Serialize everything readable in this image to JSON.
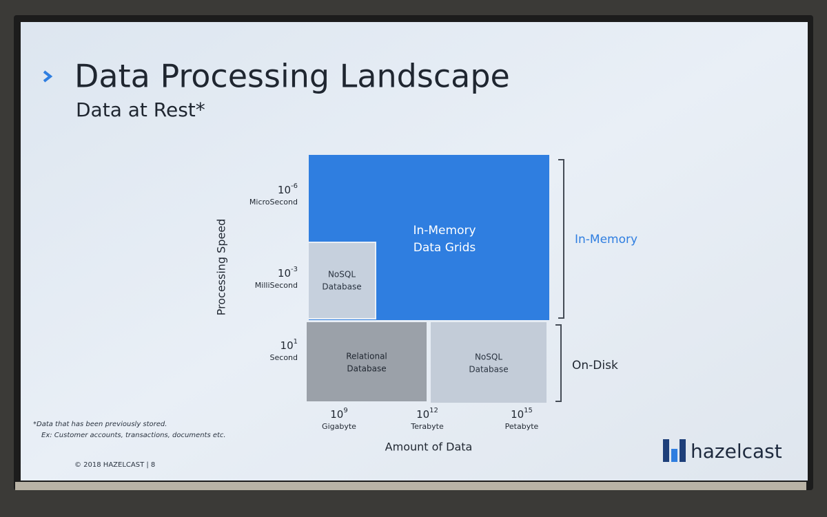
{
  "header": {
    "title": "Data Processing Landscape",
    "subtitle": "Data at Rest*"
  },
  "y_axis": {
    "label": "Processing Speed",
    "ticks": [
      {
        "base": "10",
        "exponent": "-6",
        "label": "MicroSecond"
      },
      {
        "base": "10",
        "exponent": "-3",
        "label": "MilliSecond"
      },
      {
        "base": "10",
        "exponent": "1",
        "label": "Second"
      }
    ]
  },
  "x_axis": {
    "label": "Amount of Data",
    "ticks": [
      {
        "base": "10",
        "exponent": "9",
        "label": "Gigabyte"
      },
      {
        "base": "10",
        "exponent": "12",
        "label": "Terabyte"
      },
      {
        "base": "10",
        "exponent": "15",
        "label": "Petabyte"
      }
    ]
  },
  "boxes": [
    {
      "lines": [
        "In-Memory",
        "Data Grids"
      ]
    },
    {
      "lines": [
        "NoSQL",
        "Database"
      ]
    },
    {
      "lines": [
        "Relational",
        "Database"
      ]
    },
    {
      "lines": [
        "NoSQL",
        "Database"
      ]
    }
  ],
  "brackets": [
    "In-Memory",
    "On-Disk"
  ],
  "footnote": [
    "*Data that has been previously stored.",
    "Ex: Customer accounts, transactions, documents etc."
  ],
  "footer": {
    "copyright": "© 2018 HAZELCAST | 8",
    "logo": "hazelcast"
  }
}
